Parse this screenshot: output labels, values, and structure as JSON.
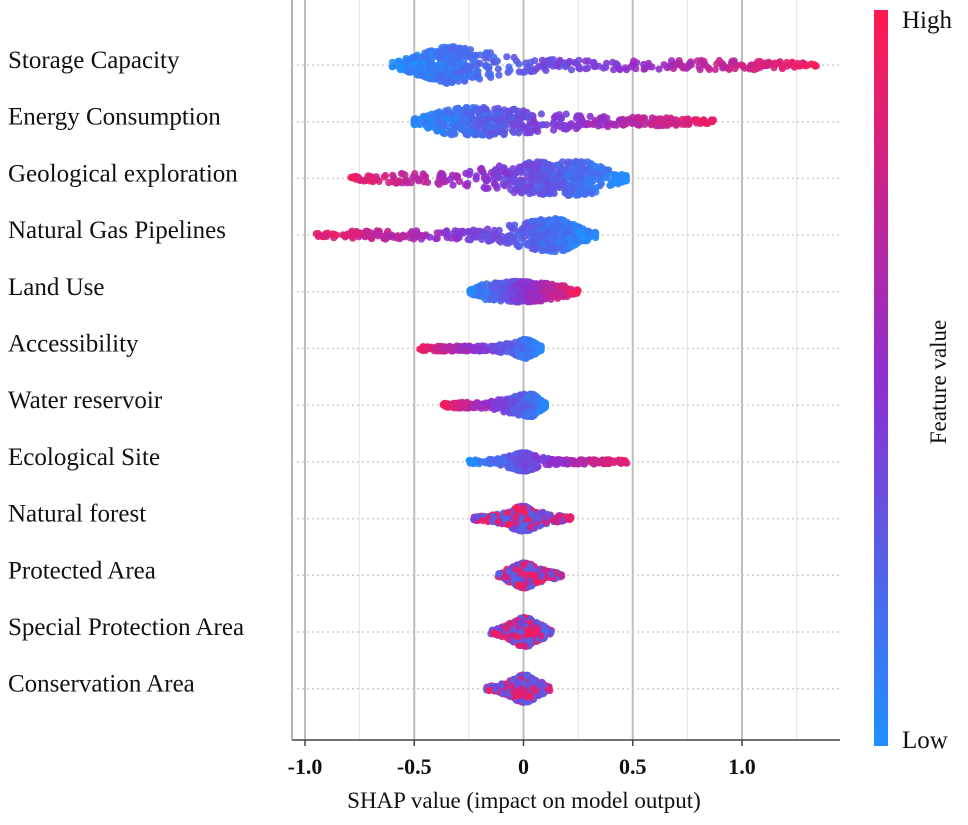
{
  "chart_data": {
    "type": "scatter",
    "subtype": "shap-beeswarm",
    "xlabel": "SHAP value (impact on model output)",
    "xlim": [
      -1.05,
      1.45
    ],
    "x_ticks": [
      -1.0,
      -0.5,
      0,
      0.5,
      1.0
    ],
    "x_tick_labels": [
      "-1.0",
      "-0.5",
      "0",
      "0.5",
      "1.0"
    ],
    "grid": true,
    "colorbar": {
      "title": "Feature value",
      "high_label": "High",
      "low_label": "Low",
      "low_color": "#1e90ff",
      "mid_color": "#8e2fd0",
      "high_color": "#ff1a4f"
    },
    "features": [
      {
        "name": "Storage Capacity",
        "min": -0.6,
        "max": 1.35,
        "core_min": -0.5,
        "core_max": -0.25,
        "spread": 0.45,
        "trend": "positive"
      },
      {
        "name": "Energy Consumption",
        "min": -0.5,
        "max": 0.87,
        "core_min": -0.45,
        "core_max": -0.05,
        "spread": 0.35,
        "trend": "positive"
      },
      {
        "name": "Geological exploration",
        "min": -0.8,
        "max": 0.47,
        "core_min": 0.0,
        "core_max": 0.35,
        "spread": 0.42,
        "trend": "negative"
      },
      {
        "name": "Natural Gas Pipelines",
        "min": -0.95,
        "max": 0.33,
        "core_min": 0.05,
        "core_max": 0.25,
        "spread": 0.4,
        "trend": "negative"
      },
      {
        "name": "Land Use",
        "min": -0.25,
        "max": 0.25,
        "core_min": -0.12,
        "core_max": 0.08,
        "spread": 0.25,
        "trend": "positive"
      },
      {
        "name": "Accessibility",
        "min": -0.48,
        "max": 0.08,
        "core_min": 0.0,
        "core_max": 0.08,
        "spread": 0.25,
        "trend": "negative"
      },
      {
        "name": "Water reservoir",
        "min": -0.37,
        "max": 0.1,
        "core_min": -0.02,
        "core_max": 0.08,
        "spread": 0.28,
        "trend": "negative"
      },
      {
        "name": "Ecological Site",
        "min": -0.25,
        "max": 0.48,
        "core_min": -0.03,
        "core_max": 0.03,
        "spread": 0.22,
        "trend": "positive"
      },
      {
        "name": "Natural forest",
        "min": -0.23,
        "max": 0.22,
        "core_min": -0.03,
        "core_max": 0.03,
        "spread": 0.3,
        "trend": "mixed"
      },
      {
        "name": "Protected Area",
        "min": -0.12,
        "max": 0.18,
        "core_min": -0.02,
        "core_max": 0.03,
        "spread": 0.3,
        "trend": "mixed"
      },
      {
        "name": "Special Protection Area",
        "min": -0.15,
        "max": 0.13,
        "core_min": -0.02,
        "core_max": 0.03,
        "spread": 0.35,
        "trend": "mixed"
      },
      {
        "name": "Conservation Area",
        "min": -0.17,
        "max": 0.12,
        "core_min": -0.02,
        "core_max": 0.03,
        "spread": 0.33,
        "trend": "mixed"
      }
    ]
  }
}
